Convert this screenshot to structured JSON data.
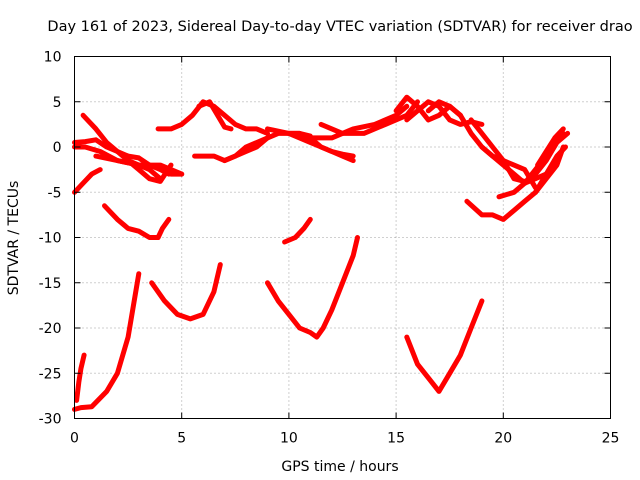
{
  "chart_data": {
    "type": "scatter",
    "title": "Day 161 of 2023, Sidereal Day-to-day VTEC variation (SDTVAR) for receiver drao",
    "xlabel": "GPS time / hours",
    "ylabel": "SDTVAR / TECUs",
    "xlim": [
      0,
      25
    ],
    "ylim": [
      -30,
      10
    ],
    "xticks": [
      "0",
      "5",
      "10",
      "15",
      "20",
      "25"
    ],
    "yticks": [
      "10",
      "5",
      "0",
      "-5",
      "-10",
      "-15",
      "-20",
      "-25",
      "-30"
    ],
    "grid": true,
    "color": "#ff0000",
    "series": [
      {
        "x": [
          0,
          0.3,
          0.8,
          1.5,
          2.0,
          2.5,
          3.0
        ],
        "y": [
          -29,
          -28.8,
          -28.7,
          -27,
          -25,
          -21,
          -14
        ]
      },
      {
        "x": [
          0.1,
          0.2,
          0.3,
          0.45
        ],
        "y": [
          -28,
          -26,
          -24.5,
          -23
        ]
      },
      {
        "x": [
          0,
          0.4,
          0.8,
          1.2
        ],
        "y": [
          -5,
          -4,
          -3,
          -2.5
        ]
      },
      {
        "x": [
          1.4,
          2.0,
          2.5,
          3.0,
          3.5,
          3.9,
          4.1,
          4.4
        ],
        "y": [
          -6.5,
          -8,
          -9,
          -9.3,
          -10,
          -10,
          -9,
          -8
        ]
      },
      {
        "x": [
          3.6,
          4.2,
          4.8,
          5.4,
          6.0,
          6.5,
          6.8
        ],
        "y": [
          -15,
          -17,
          -18.5,
          -19,
          -18.5,
          -16,
          -13
        ]
      },
      {
        "x": [
          0,
          0.5,
          1.0,
          1.5,
          2.0,
          2.5,
          3.0,
          3.5,
          4.0,
          4.4
        ],
        "y": [
          0.5,
          0.6,
          0.8,
          0,
          -0.5,
          -1,
          -1.2,
          -2,
          -2.5,
          -3
        ]
      },
      {
        "x": [
          0,
          0.5,
          1.2,
          2.0,
          3.0,
          4.0,
          5.0
        ],
        "y": [
          0,
          0,
          -0.5,
          -1.5,
          -2,
          -2,
          -3
        ]
      },
      {
        "x": [
          0.4,
          1.0,
          1.5,
          2.0,
          2.5,
          3.0,
          3.5,
          4.0
        ],
        "y": [
          3.5,
          2,
          0.5,
          -0.5,
          -1.5,
          -2,
          -2.5,
          -3.5
        ]
      },
      {
        "x": [
          1.0,
          2.0,
          3.0,
          4.0,
          4.5,
          5.0
        ],
        "y": [
          -1,
          -1.5,
          -2,
          -2.2,
          -3,
          -3
        ]
      },
      {
        "x": [
          2.5,
          3.0,
          3.5,
          4.0,
          4.5
        ],
        "y": [
          -1.5,
          -2.5,
          -3.5,
          -3.8,
          -2
        ]
      },
      {
        "x": [
          3.9,
          4.5,
          5.0,
          5.5,
          6.0,
          6.5,
          7.0,
          7.5,
          8.0,
          8.5,
          9.0
        ],
        "y": [
          2,
          2,
          2.5,
          3.5,
          5,
          4.5,
          3.5,
          2.5,
          2,
          2,
          1.5
        ]
      },
      {
        "x": [
          5.8,
          6.3,
          6.8,
          7.0,
          7.3
        ],
        "y": [
          4.5,
          5,
          3,
          2.2,
          2
        ]
      },
      {
        "x": [
          5.6,
          6.5,
          7.0,
          7.5,
          8.0,
          8.5,
          9.0,
          9.5,
          10.0,
          10.5,
          11.0
        ],
        "y": [
          -1,
          -1,
          -1.5,
          -1,
          -0.5,
          0,
          1,
          1.5,
          1.5,
          1.5,
          1.2
        ]
      },
      {
        "x": [
          7.0,
          7.5,
          8.0,
          8.5,
          9.0
        ],
        "y": [
          -1.5,
          -1,
          0,
          0.5,
          1
        ]
      },
      {
        "x": [
          9.0,
          10.0,
          10.5,
          11.0,
          11.5,
          12.0,
          12.5,
          13.0
        ],
        "y": [
          2,
          1.5,
          1.5,
          1,
          0,
          -0.5,
          -0.8,
          -1
        ]
      },
      {
        "x": [
          10.0,
          10.5,
          11.0,
          11.5,
          12.0,
          12.5,
          13.0
        ],
        "y": [
          1.5,
          1,
          0.5,
          0,
          -0.5,
          -1,
          -1.5
        ]
      },
      {
        "x": [
          11.0,
          12.0,
          13.0,
          14.0,
          15.0,
          15.5
        ],
        "y": [
          1,
          1,
          2,
          2.5,
          3.5,
          4.5
        ]
      },
      {
        "x": [
          11.5,
          12.5,
          13.5,
          14.5,
          15.5,
          16.0
        ],
        "y": [
          2.5,
          1.5,
          1.5,
          2.5,
          3.5,
          5
        ]
      },
      {
        "x": [
          15.0,
          15.5,
          16.0,
          16.5,
          17.0,
          17.5,
          18.0
        ],
        "y": [
          4,
          5.5,
          4.5,
          3,
          3.5,
          4.5,
          3.5
        ]
      },
      {
        "x": [
          15.5,
          16.0,
          16.5,
          17.0,
          17.5,
          18.0,
          18.5,
          19.0
        ],
        "y": [
          3,
          4,
          5,
          4.5,
          3,
          2.5,
          2.8,
          2.5
        ]
      },
      {
        "x": [
          16.5,
          17.0,
          17.5,
          18.0,
          18.5,
          19.0,
          19.5,
          20.0,
          20.5,
          21.0,
          21.5,
          22.0
        ],
        "y": [
          4,
          5,
          4.5,
          3.5,
          1.5,
          0,
          -1,
          -2,
          -3,
          -4,
          -3.5,
          -3
        ]
      },
      {
        "x": [
          18.5,
          19.0,
          19.5,
          20.0,
          20.5,
          21.0
        ],
        "y": [
          3,
          1.5,
          0,
          -1.5,
          -3.5,
          -3.8
        ]
      },
      {
        "x": [
          19.0,
          19.5,
          20.0,
          20.5,
          21.0,
          21.5
        ],
        "y": [
          0,
          -1,
          -1.5,
          -2,
          -2.5,
          -4.5
        ]
      },
      {
        "x": [
          21.0,
          21.5,
          22.0,
          22.5,
          23.0
        ],
        "y": [
          -4,
          -3,
          -1.5,
          0.5,
          1.5
        ]
      },
      {
        "x": [
          21.5,
          22.0,
          22.5,
          22.9
        ],
        "y": [
          -5,
          -3,
          -1,
          0
        ]
      },
      {
        "x": [
          21.6,
          22.0,
          22.4,
          22.8
        ],
        "y": [
          -2,
          -0.5,
          1,
          2
        ]
      },
      {
        "x": [
          19.8,
          20.5,
          21.0,
          21.5,
          22.0,
          22.5,
          22.8
        ],
        "y": [
          -5.5,
          -5,
          -4,
          -2.5,
          -1,
          1,
          1.5
        ]
      },
      {
        "x": [
          18.3,
          19.0,
          19.5,
          20.0,
          20.5,
          21.0,
          21.5,
          22.0,
          22.5,
          22.8
        ],
        "y": [
          -6,
          -7.5,
          -7.5,
          -8,
          -7,
          -6,
          -5,
          -3.5,
          -2,
          0
        ]
      },
      {
        "x": [
          9.8,
          10.3,
          10.7,
          11.0
        ],
        "y": [
          -10.5,
          -10,
          -9,
          -8
        ]
      },
      {
        "x": [
          9.0,
          9.5,
          10.0,
          10.5,
          11.0,
          11.3,
          11.6,
          12.0,
          12.5,
          13.0,
          13.2
        ],
        "y": [
          -15,
          -17,
          -18.5,
          -20,
          -20.5,
          -21,
          -20,
          -18,
          -15,
          -12,
          -10
        ]
      },
      {
        "x": [
          15.5,
          16.0,
          16.5,
          17.0,
          17.5,
          18.0,
          18.5,
          19.0
        ],
        "y": [
          -21,
          -24,
          -25.5,
          -27,
          -25,
          -23,
          -20,
          -17
        ]
      }
    ]
  }
}
